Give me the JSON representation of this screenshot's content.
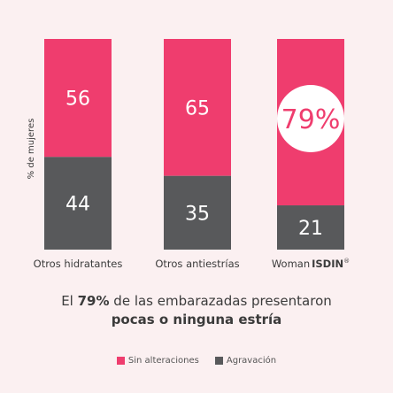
{
  "chart_data": {
    "type": "bar",
    "stacked": true,
    "ylabel": "% de mujeres",
    "ylim": [
      0,
      100
    ],
    "categories": [
      "Otros hidratantes",
      "Otros antiestrías",
      "Woman ISDIN®"
    ],
    "category_parts": {
      "woman": "Woman",
      "brand": "ISDIN",
      "reg": "®"
    },
    "series": [
      {
        "name": "Sin alteraciones",
        "color": "#ef3d6e",
        "values": [
          56,
          65,
          79
        ]
      },
      {
        "name": "Agravación",
        "color": "#58595b",
        "values": [
          44,
          35,
          21
        ]
      }
    ],
    "top_labels": [
      "56",
      "65",
      "79%"
    ],
    "bottom_labels": [
      "44",
      "35",
      "21"
    ],
    "highlight_badge": "79%"
  },
  "caption": {
    "line1_pre": "El ",
    "line1_bold": "79%",
    "line1_post": " de las embarazadas presentaron",
    "line2": "pocas o ninguna estría"
  },
  "legend": {
    "items": [
      {
        "label": "Sin alteraciones",
        "color": "#ef3d6e"
      },
      {
        "label": "Agravación",
        "color": "#58595b"
      }
    ]
  }
}
